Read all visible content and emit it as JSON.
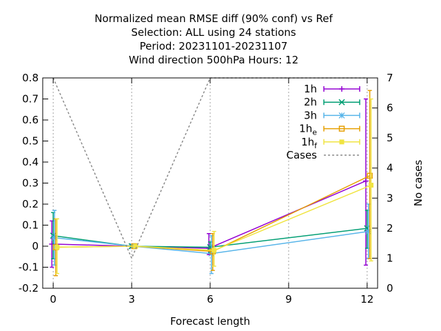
{
  "chart_data": {
    "type": "line",
    "title_lines": [
      "Normalized mean RMSE diff (90% conf) vs Ref",
      "Selection: ALL using    24 stations",
      "Period: 20231101-20231107",
      "Wind direction 500hPa   Hours:  12"
    ],
    "xlabel": "Forecast length",
    "ylabel": "",
    "y2label": "No cases",
    "xlim": [
      -0.4,
      12.4
    ],
    "ylim": [
      -0.2,
      0.8
    ],
    "y2lim": [
      0,
      7
    ],
    "x_ticks": [
      0,
      3,
      6,
      9,
      12
    ],
    "y_ticks": [
      "-0.2",
      "-0.1",
      "0",
      "0.1",
      "0.2",
      "0.3",
      "0.4",
      "0.5",
      "0.6",
      "0.7",
      "0.8"
    ],
    "y2_ticks": [
      "0",
      "1",
      "2",
      "3",
      "4",
      "5",
      "6",
      "7"
    ],
    "grid": true,
    "legend_position": "top-right",
    "series": [
      {
        "name": "1h",
        "color": "#9400d3",
        "marker": "plus",
        "offset": -0.05,
        "x": [
          0,
          3,
          6,
          12
        ],
        "y": [
          0.01,
          0.0,
          -0.01,
          0.31
        ],
        "err_low": [
          -0.1,
          null,
          -0.04,
          -0.09
        ],
        "err_high": [
          0.12,
          null,
          0.06,
          0.7
        ]
      },
      {
        "name": "2h",
        "color": "#009e73",
        "marker": "cross",
        "offset": 0.0,
        "x": [
          0,
          3,
          6,
          12
        ],
        "y": [
          0.05,
          0.0,
          -0.005,
          0.085
        ],
        "err_low": [
          -0.06,
          null,
          -0.03,
          -0.01
        ],
        "err_high": [
          0.16,
          null,
          0.02,
          0.17
        ]
      },
      {
        "name": "3h",
        "color": "#56b4e9",
        "marker": "star",
        "offset": 0.05,
        "x": [
          0,
          3,
          6,
          12
        ],
        "y": [
          0.04,
          0.0,
          -0.035,
          0.07
        ],
        "err_low": [
          -0.09,
          null,
          -0.13,
          -0.06
        ],
        "err_high": [
          0.17,
          null,
          0.05,
          0.2
        ]
      },
      {
        "name": "1h_e",
        "name_base": "1h",
        "name_sub": "e",
        "color": "#e69f00",
        "marker": "square",
        "offset": 0.1,
        "x": [
          0,
          3,
          6,
          12
        ],
        "y": [
          -0.005,
          0.0,
          -0.025,
          0.335
        ],
        "err_low": [
          -0.14,
          null,
          -0.115,
          -0.06
        ],
        "err_high": [
          0.13,
          null,
          0.06,
          0.74
        ]
      },
      {
        "name": "1h_f",
        "name_base": "1h",
        "name_sub": "f",
        "color": "#f0e442",
        "marker": "filled-square",
        "offset": 0.15,
        "x": [
          0,
          3,
          6,
          12
        ],
        "y": [
          -0.005,
          0.0,
          -0.02,
          0.29
        ],
        "err_low": [
          -0.13,
          null,
          -0.095,
          -0.07
        ],
        "err_high": [
          0.13,
          null,
          0.07,
          0.7
        ]
      },
      {
        "name": "Cases",
        "color": "#888888",
        "style": "dashed",
        "axis": "y2",
        "x": [
          0,
          3,
          6,
          12
        ],
        "y": [
          7,
          1,
          7,
          7
        ]
      }
    ]
  }
}
